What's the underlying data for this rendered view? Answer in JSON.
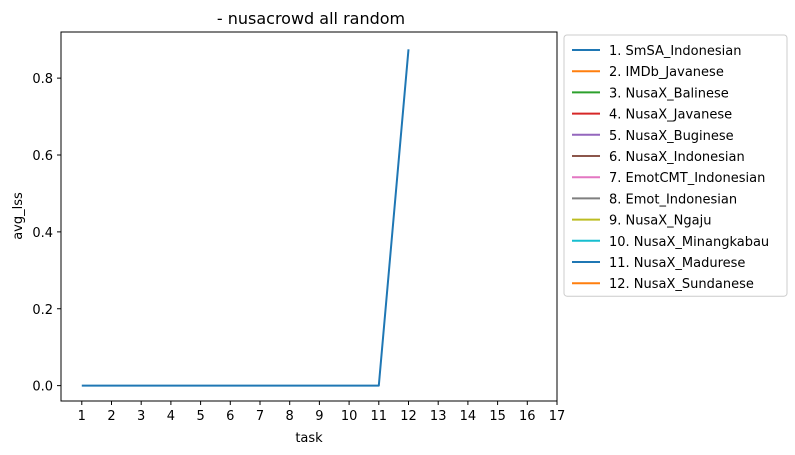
{
  "chart_data": {
    "type": "line",
    "title": "- nusacrowd all random",
    "xlabel": "task",
    "ylabel": "avg_lss",
    "xlim": [
      0.3,
      17
    ],
    "ylim": [
      -0.04,
      0.92
    ],
    "x_ticks": [
      1,
      2,
      3,
      4,
      5,
      6,
      7,
      8,
      9,
      10,
      11,
      12,
      13,
      14,
      15,
      16,
      17
    ],
    "y_ticks": [
      0.0,
      0.2,
      0.4,
      0.6,
      0.8
    ],
    "y_tick_labels": [
      "0.0",
      "0.2",
      "0.4",
      "0.6",
      "0.8"
    ],
    "grid": false,
    "legend_position": "outside-right-top",
    "series": [
      {
        "name": "1. SmSA_Indonesian",
        "color": "#1f77b4",
        "x": [
          1,
          2,
          3,
          4,
          5,
          6,
          7,
          8,
          9,
          10,
          11,
          12
        ],
        "y": [
          0,
          0,
          0,
          0,
          0,
          0,
          0,
          0,
          0,
          0,
          0,
          0.875
        ]
      },
      {
        "name": "2. IMDb_Javanese",
        "color": "#ff7f0e",
        "x": [],
        "y": []
      },
      {
        "name": "3. NusaX_Balinese",
        "color": "#2ca02c",
        "x": [],
        "y": []
      },
      {
        "name": "4. NusaX_Javanese",
        "color": "#d62728",
        "x": [],
        "y": []
      },
      {
        "name": "5. NusaX_Buginese",
        "color": "#9467bd",
        "x": [],
        "y": []
      },
      {
        "name": "6. NusaX_Indonesian",
        "color": "#8c564b",
        "x": [],
        "y": []
      },
      {
        "name": "7. EmotCMT_Indonesian",
        "color": "#e377c2",
        "x": [],
        "y": []
      },
      {
        "name": "8. Emot_Indonesian",
        "color": "#7f7f7f",
        "x": [],
        "y": []
      },
      {
        "name": "9. NusaX_Ngaju",
        "color": "#bcbd22",
        "x": [],
        "y": []
      },
      {
        "name": "10. NusaX_Minangkabau",
        "color": "#17becf",
        "x": [],
        "y": []
      },
      {
        "name": "11. NusaX_Madurese",
        "color": "#1f77b4",
        "x": [],
        "y": []
      },
      {
        "name": "12. NusaX_Sundanese",
        "color": "#ff7f0e",
        "x": [],
        "y": []
      }
    ]
  }
}
